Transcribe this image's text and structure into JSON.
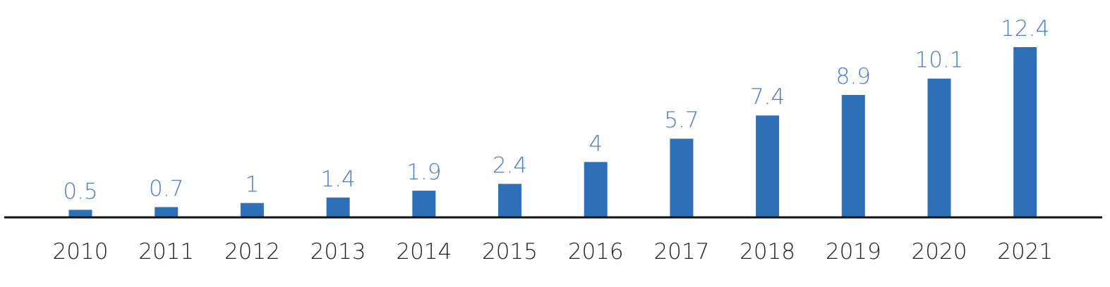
{
  "chart_data": {
    "type": "bar",
    "categories": [
      "2010",
      "2011",
      "2012",
      "2013",
      "2014",
      "2015",
      "2016",
      "2017",
      "2018",
      "2019",
      "2020",
      "2021"
    ],
    "values": [
      0.5,
      0.7,
      1,
      1.4,
      1.9,
      2.4,
      4,
      5.7,
      7.4,
      8.9,
      10.1,
      12.4
    ],
    "data_labels": [
      "0.5",
      "0.7",
      "1",
      "1.4",
      "1.9",
      "2.4",
      "4",
      "5.7",
      "7.4",
      "8.9",
      "10.1",
      "12.4"
    ],
    "title": "",
    "xlabel": "",
    "ylabel": "",
    "ylim": [
      0,
      12.4
    ],
    "grid": false,
    "legend": "none"
  },
  "colors": {
    "bar": "#2e70b8",
    "value_label": "#4a7ec0",
    "tick_label": "#222222",
    "axis": "#111111",
    "background": "#ffffff"
  }
}
